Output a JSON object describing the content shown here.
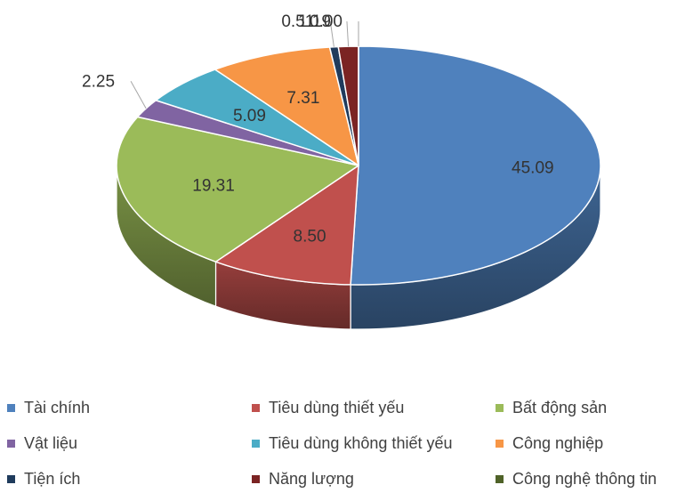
{
  "chart_data": {
    "type": "pie",
    "style": "3d-pie",
    "legend_position": "bottom",
    "slices": [
      {
        "label": "Tài chính",
        "value": 45.09,
        "value_label": "45.09",
        "color": "#4F81BD"
      },
      {
        "label": "Tiêu dùng thiết yếu",
        "value": 8.5,
        "value_label": "8.50",
        "color": "#C0504D"
      },
      {
        "label": "Bất động sản",
        "value": 19.31,
        "value_label": "19.31",
        "color": "#9BBB59"
      },
      {
        "label": "Vật liệu",
        "value": 2.25,
        "value_label": "2.25",
        "color": "#8064A2"
      },
      {
        "label": "Tiêu dùng không thiết yếu",
        "value": 5.09,
        "value_label": "5.09",
        "color": "#4BACC6"
      },
      {
        "label": "Công nghiệp",
        "value": 7.31,
        "value_label": "7.31",
        "color": "#F79646"
      },
      {
        "label": "Tiện ích",
        "value": 0.51,
        "value_label": "0.51",
        "color": "#1F3B5C"
      },
      {
        "label": "Năng lượng",
        "value": 1.19,
        "value_label": "1.19",
        "color": "#7B2423"
      },
      {
        "label": "Công nghệ thông tin",
        "value": 0.0,
        "value_label": "0.00",
        "color": "#4F6228"
      }
    ]
  }
}
